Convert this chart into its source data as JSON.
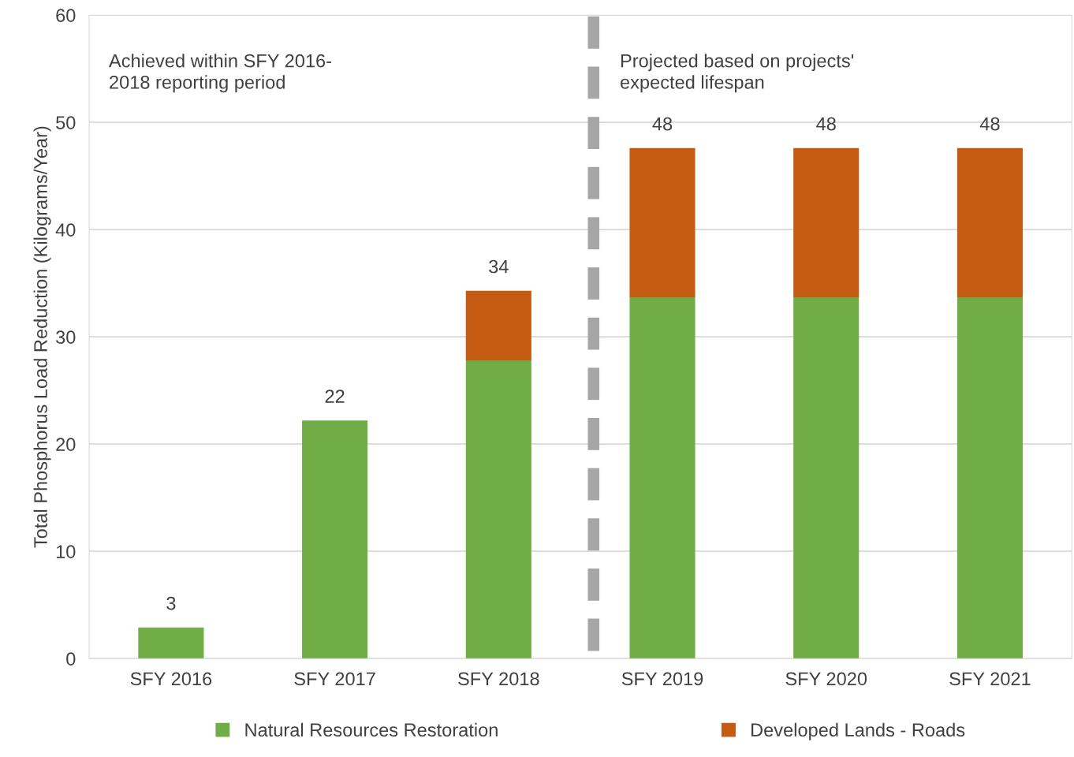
{
  "chart_data": {
    "type": "bar",
    "stacked": true,
    "ylabel": "Total Phosphorus Load Reduction (Kilograms/Year)",
    "categories": [
      "SFY 2016",
      "SFY 2017",
      "SFY 2018",
      "SFY 2019",
      "SFY 2020",
      "SFY 2021"
    ],
    "series": [
      {
        "name": "Natural Resources Restoration",
        "color": "#70ad47",
        "values": [
          2.9,
          22.2,
          27.8,
          33.7,
          33.7,
          33.7
        ]
      },
      {
        "name": "Developed Lands - Roads",
        "color": "#c55a11",
        "values": [
          0,
          0,
          6.5,
          13.9,
          13.9,
          13.9
        ]
      }
    ],
    "totals": [
      "3",
      "22",
      "34",
      "48",
      "48",
      "48"
    ],
    "ylim": [
      0,
      60
    ],
    "yticks": [
      0,
      10,
      20,
      30,
      40,
      50,
      60
    ],
    "grid": "y",
    "legend": "bottom",
    "annotations": [
      "Achieved within SFY 2016-\n2018 reporting period",
      "Projected based on projects'\nexpected lifespan"
    ]
  }
}
